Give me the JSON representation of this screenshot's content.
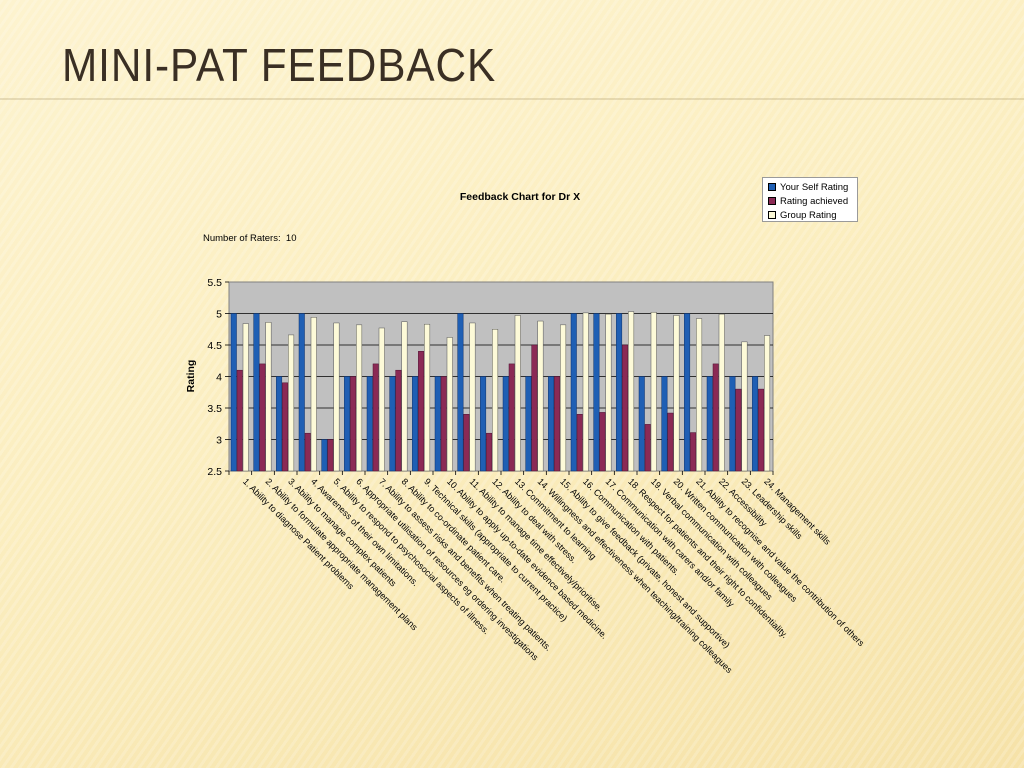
{
  "slide": {
    "title": "MINI-PAT FEEDBACK"
  },
  "raters": {
    "label": "Number of Raters:",
    "value": "10"
  },
  "colors": {
    "self": "#1f5fb4",
    "achieved": "#8b2a55",
    "group": "#fdfad8",
    "plot_bg": "#c0c0c0"
  },
  "chart_data": {
    "type": "bar",
    "title": "Feedback Chart for Dr X",
    "xlabel": "",
    "ylabel": "Rating",
    "ylim": [
      2.5,
      5.5
    ],
    "yticks": [
      "2.5",
      "3",
      "3.5",
      "4",
      "4.5",
      "5",
      "5.5"
    ],
    "grid": true,
    "legend_position": "top-right",
    "categories": [
      "1.  Ability to diagnose Patient problems",
      "2.  Ability to formulate appropriate management plans",
      "3.  Ability to manage complex patients",
      "4.  Awareness of their own limitations.",
      "5.  Ability to respond to psychosocial aspects of illness.",
      "6.  Appropriate utilisation of resources eg ordering investigations",
      "7.  Ability to assess risks and benefits when treating patients.",
      "8.  Ability to co-ordinate patient care.",
      "9.  Technical skills (appropriate to current practice)",
      "10.  Ability to apply up-to-date evidence based medicine.",
      "11.  Ability to manage time effectively/prioritise.",
      "12.  Ability to deal with stress.",
      "13.  Commitment to learning",
      "14.  Willingness and effectiveness when teaching/training colleagues",
      "15.  Ability to give feedback (private, honest and supportive)",
      "16.  Communication with patients.",
      "17.  Communication with carers and/or family",
      "18.  Respect for patients and their right to confidentiality.",
      "19.  Verbal communication with colleagues",
      "20.  Written communication with colleagues",
      "21.  Ability to recognise and value the contribution of others",
      "22.  Accessibility",
      "23.  Leadership skills",
      "24.  Management skills"
    ],
    "series": [
      {
        "name": "Your Self Rating",
        "values": [
          5,
          5,
          4,
          5,
          3,
          4,
          4,
          4,
          4,
          4,
          5,
          4,
          4,
          4,
          4,
          5,
          5,
          5,
          4,
          4,
          5,
          4,
          4,
          4
        ]
      },
      {
        "name": "Rating achieved",
        "values": [
          4.1,
          4.2,
          3.9,
          3.1,
          3.0,
          4.0,
          4.2,
          4.1,
          4.4,
          4.0,
          3.4,
          3.1,
          4.2,
          4.5,
          4.0,
          3.4,
          3.43,
          4.5,
          3.24,
          3.42,
          3.11,
          4.2,
          3.8,
          3.8
        ]
      },
      {
        "name": "Group Rating",
        "values": [
          4.84,
          4.86,
          4.66,
          4.94,
          4.85,
          4.82,
          4.77,
          4.87,
          4.83,
          4.62,
          4.85,
          4.75,
          4.97,
          4.88,
          4.82,
          5.01,
          4.99,
          5.03,
          5.02,
          4.97,
          4.92,
          4.99,
          4.55,
          4.65
        ]
      }
    ]
  }
}
